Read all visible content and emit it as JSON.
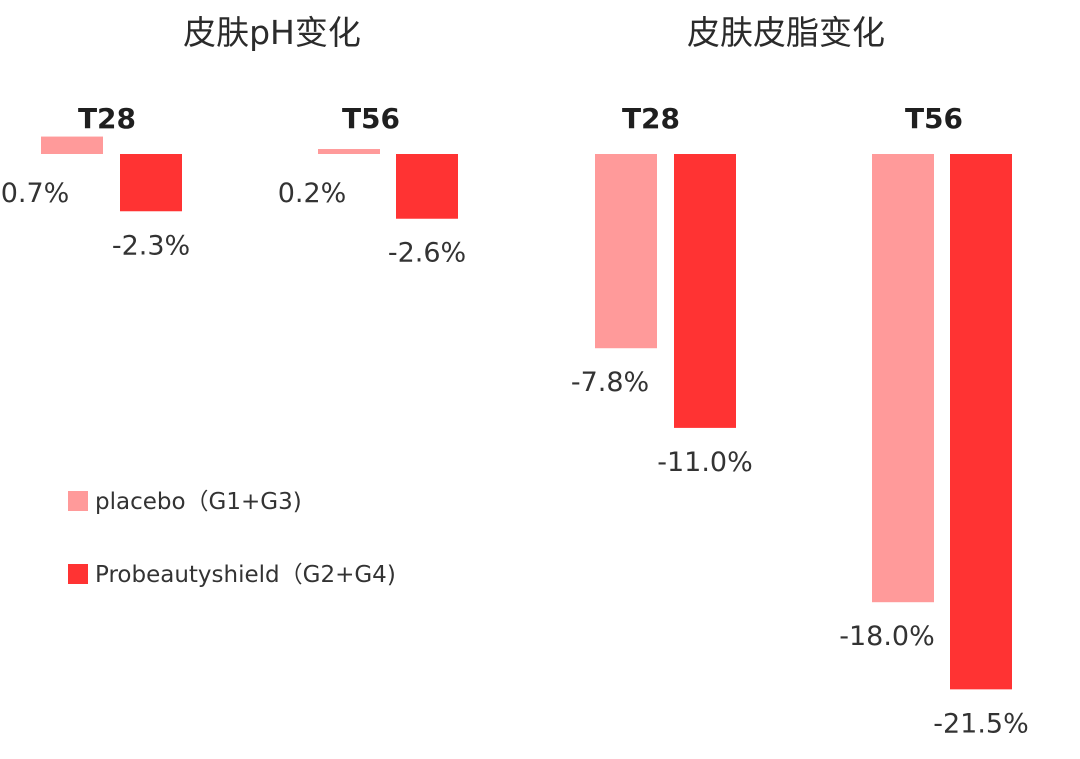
{
  "colors": {
    "placebo": "#ff9a9a",
    "probeautyshield": "#ff3333"
  },
  "legend": [
    {
      "label": "placebo（G1+G3)",
      "color": "#ff9a9a"
    },
    {
      "label": "Probeautyshield（G2+G4)",
      "color": "#ff3333"
    }
  ],
  "chart_data": [
    {
      "type": "bar",
      "title": "皮肤pH变化",
      "categories": [
        "T28",
        "T56"
      ],
      "series": [
        {
          "name": "placebo（G1+G3)",
          "values": [
            0.7,
            0.2
          ],
          "labels": [
            "0.7%",
            "0.2%"
          ]
        },
        {
          "name": "Probeautyshield（G2+G4)",
          "values": [
            -2.3,
            -2.6
          ],
          "labels": [
            "-2.3%",
            "-2.6%"
          ]
        }
      ]
    },
    {
      "type": "bar",
      "title": "皮肤皮脂变化",
      "categories": [
        "T28",
        "T56"
      ],
      "series": [
        {
          "name": "placebo（G1+G3)",
          "values": [
            -7.8,
            -18.0
          ],
          "labels": [
            "-7.8%",
            "-18.0%"
          ]
        },
        {
          "name": "Probeautyshield（G2+G4)",
          "values": [
            -11.0,
            -21.5
          ],
          "labels": [
            "-11.0%",
            "-21.5%"
          ]
        }
      ]
    }
  ]
}
